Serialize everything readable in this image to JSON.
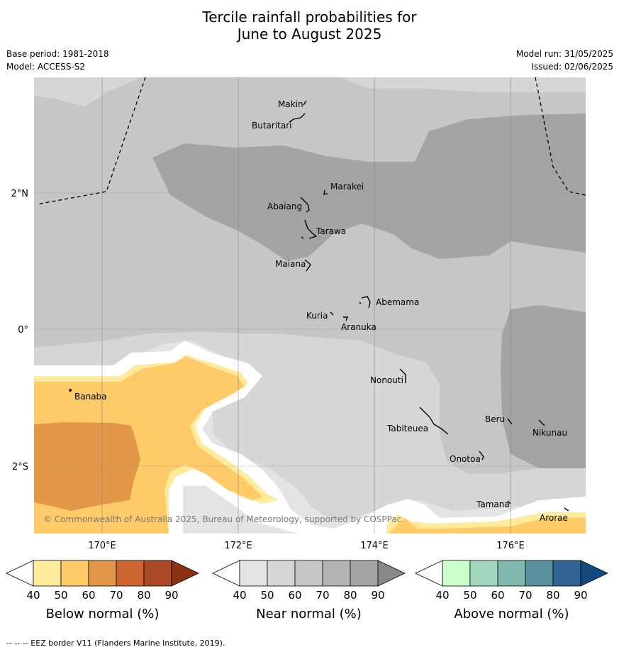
{
  "title": {
    "line1": "Tercile rainfall probabilities for",
    "line2": "June to August 2025"
  },
  "meta": {
    "base_period": "Base period: 1981-2018",
    "model": "Model: ACCESS-S2",
    "model_run": "Model run: 31/05/2025",
    "issued": "Issued: 02/06/2025"
  },
  "axes": {
    "lat_labels": [
      "2°N",
      "0°",
      "2°S"
    ],
    "lon_labels": [
      "170°E",
      "172°E",
      "174°E",
      "176°E"
    ]
  },
  "islands": {
    "makin": "Makin",
    "butaritari": "Butaritari",
    "marakei": "Marakei",
    "abaiang": "Abaiang",
    "tarawa": "Tarawa",
    "maiana": "Maiana",
    "abemama": "Abemama",
    "kuria": "Kuria",
    "aranuka": "Aranuka",
    "nonouti": "Nonouti",
    "banaba": "Banaba",
    "beru": "Beru",
    "tabiteuea": "Tabiteuea",
    "nikunau": "Nikunau",
    "onotoa": "Onotoa",
    "tamana": "Tamana",
    "arorae": "Arorae"
  },
  "copyright": "© Commonwealth of Australia 2025, Bureau of Meteorology, supported by COSPPac",
  "colorbars": [
    {
      "title": "Below normal (%)",
      "ticks": [
        "40",
        "50",
        "60",
        "70",
        "80",
        "90"
      ],
      "colors": [
        "#ffffff",
        "#ffeb9e",
        "#fecb68",
        "#e29848",
        "#cb6333",
        "#ab4a26",
        "#8b3010"
      ]
    },
    {
      "title": "Near normal (%)",
      "ticks": [
        "40",
        "50",
        "60",
        "70",
        "80",
        "90"
      ],
      "colors": [
        "#ffffff",
        "#e4e4e4",
        "#d6d6d6",
        "#c6c6c6",
        "#b4b4b4",
        "#a4a4a4",
        "#888888"
      ]
    },
    {
      "title": "Above normal (%)",
      "ticks": [
        "40",
        "50",
        "60",
        "70",
        "80",
        "90"
      ],
      "colors": [
        "#ffffff",
        "#ccffcc",
        "#a3d8bf",
        "#80b8b0",
        "#5a919f",
        "#316495",
        "#124a80"
      ]
    }
  ],
  "footnote": "--  --  -- EEZ border V11 (Flanders Marine Institute, 2019)."
}
